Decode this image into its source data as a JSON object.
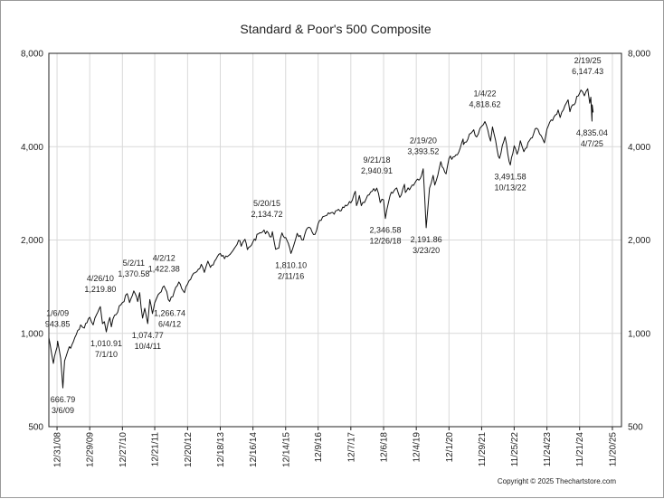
{
  "chart_data": {
    "type": "line",
    "title": "Standard & Poor's 500 Composite",
    "xlabel": "",
    "ylabel": "",
    "y_scale": "log",
    "ylim": [
      500,
      8000
    ],
    "grid": true,
    "y_ticks": [
      500,
      1000,
      2000,
      4000,
      8000
    ],
    "y_tick_labels": [
      "500",
      "1,000",
      "2,000",
      "4,000",
      "8,000"
    ],
    "x_ticks": [
      "12/31/08",
      "12/29/09",
      "12/27/10",
      "12/21/11",
      "12/20/12",
      "12/18/13",
      "12/16/14",
      "12/14/15",
      "12/9/16",
      "12/7/17",
      "12/6/18",
      "12/4/19",
      "12/1/20",
      "11/29/21",
      "11/25/22",
      "11/24/23",
      "11/21/24",
      "11/20/25"
    ],
    "x_range": [
      "2008-10-01",
      "2026-03-01"
    ],
    "series": [
      {
        "values": [
          [
            "2008-10-01",
            970
          ],
          [
            "2008-11-20",
            800
          ],
          [
            "2008-12-31",
            903
          ],
          [
            "2009-01-06",
            943.85
          ],
          [
            "2009-02-10",
            830
          ],
          [
            "2009-03-06",
            666.79
          ],
          [
            "2009-03-25",
            815
          ],
          [
            "2009-05-01",
            880
          ],
          [
            "2009-06-15",
            920
          ],
          [
            "2009-08-01",
            990
          ],
          [
            "2009-09-20",
            1065
          ],
          [
            "2009-10-30",
            1040
          ],
          [
            "2009-12-29",
            1127
          ],
          [
            "2010-02-05",
            1065
          ],
          [
            "2010-03-15",
            1150
          ],
          [
            "2010-04-26",
            1219.8
          ],
          [
            "2010-05-20",
            1075
          ],
          [
            "2010-06-10",
            1090
          ],
          [
            "2010-07-01",
            1010.91
          ],
          [
            "2010-08-09",
            1125
          ],
          [
            "2010-08-26",
            1050
          ],
          [
            "2010-10-01",
            1145
          ],
          [
            "2010-12-27",
            1257
          ],
          [
            "2011-02-18",
            1343
          ],
          [
            "2011-03-16",
            1257
          ],
          [
            "2011-05-02",
            1370.58
          ],
          [
            "2011-06-15",
            1266
          ],
          [
            "2011-07-07",
            1353
          ],
          [
            "2011-08-08",
            1120
          ],
          [
            "2011-09-01",
            1205
          ],
          [
            "2011-10-04",
            1074.77
          ],
          [
            "2011-10-27",
            1285
          ],
          [
            "2011-11-25",
            1158
          ],
          [
            "2011-12-21",
            1254
          ],
          [
            "2012-02-15",
            1350
          ],
          [
            "2012-04-02",
            1422.38
          ],
          [
            "2012-06-04",
            1266.74
          ],
          [
            "2012-09-14",
            1465
          ],
          [
            "2012-11-15",
            1353
          ],
          [
            "2012-12-20",
            1443
          ],
          [
            "2013-05-21",
            1669
          ],
          [
            "2013-06-24",
            1573
          ],
          [
            "2013-08-02",
            1709
          ],
          [
            "2013-08-30",
            1632
          ],
          [
            "2013-12-18",
            1810
          ],
          [
            "2014-02-03",
            1741
          ],
          [
            "2014-07-24",
            1988
          ],
          [
            "2014-08-07",
            1910
          ],
          [
            "2014-09-18",
            2011
          ],
          [
            "2014-10-15",
            1862
          ],
          [
            "2014-12-16",
            1972
          ],
          [
            "2015-03-01",
            2110
          ],
          [
            "2015-05-20",
            2134.72
          ],
          [
            "2015-07-08",
            2046
          ],
          [
            "2015-07-20",
            2128
          ],
          [
            "2015-08-25",
            1867
          ],
          [
            "2015-09-29",
            1884
          ],
          [
            "2015-11-03",
            2109
          ],
          [
            "2015-12-14",
            2038
          ],
          [
            "2016-02-11",
            1810.1
          ],
          [
            "2016-04-20",
            2102
          ],
          [
            "2016-06-27",
            2000
          ],
          [
            "2016-08-15",
            2190
          ],
          [
            "2016-11-04",
            2085
          ],
          [
            "2016-12-09",
            2259
          ],
          [
            "2017-03-01",
            2395
          ],
          [
            "2017-08-08",
            2480
          ],
          [
            "2017-12-07",
            2636
          ],
          [
            "2018-01-26",
            2872
          ],
          [
            "2018-02-08",
            2581
          ],
          [
            "2018-03-12",
            2783
          ],
          [
            "2018-04-02",
            2581
          ],
          [
            "2018-06-12",
            2786
          ],
          [
            "2018-09-21",
            2940.91
          ],
          [
            "2018-10-29",
            2641
          ],
          [
            "2018-12-06",
            2695
          ],
          [
            "2018-12-26",
            2346.58
          ],
          [
            "2019-02-15",
            2775
          ],
          [
            "2019-04-30",
            2945
          ],
          [
            "2019-06-03",
            2744
          ],
          [
            "2019-07-26",
            3025
          ],
          [
            "2019-08-05",
            2845
          ],
          [
            "2019-12-04",
            3113
          ],
          [
            "2020-01-31",
            3225
          ],
          [
            "2020-02-19",
            3393.52
          ],
          [
            "2020-03-23",
            2191.86
          ],
          [
            "2020-04-29",
            2940
          ],
          [
            "2020-06-08",
            3232
          ],
          [
            "2020-06-26",
            3009
          ],
          [
            "2020-09-02",
            3580
          ],
          [
            "2020-10-30",
            3270
          ],
          [
            "2020-12-01",
            3662
          ],
          [
            "2021-03-04",
            3768
          ],
          [
            "2021-05-07",
            4233
          ],
          [
            "2021-05-12",
            4063
          ],
          [
            "2021-09-02",
            4537
          ],
          [
            "2021-10-04",
            4300
          ],
          [
            "2021-11-29",
            4655
          ],
          [
            "2022-01-04",
            4818.62
          ],
          [
            "2022-03-08",
            4170
          ],
          [
            "2022-03-29",
            4631
          ],
          [
            "2022-05-20",
            3900
          ],
          [
            "2022-06-16",
            3666
          ],
          [
            "2022-08-16",
            4305
          ],
          [
            "2022-09-30",
            3585
          ],
          [
            "2022-10-13",
            3491.58
          ],
          [
            "2022-11-25",
            4026
          ],
          [
            "2022-12-28",
            3783
          ],
          [
            "2023-02-02",
            4179
          ],
          [
            "2023-03-13",
            3855
          ],
          [
            "2023-07-31",
            4589
          ],
          [
            "2023-10-27",
            4117
          ],
          [
            "2023-11-24",
            4559
          ],
          [
            "2024-03-28",
            5254
          ],
          [
            "2024-04-19",
            4967
          ],
          [
            "2024-07-16",
            5667
          ],
          [
            "2024-08-05",
            5186
          ],
          [
            "2024-11-21",
            5949
          ],
          [
            "2024-12-06",
            6090
          ],
          [
            "2025-01-13",
            5836
          ],
          [
            "2025-02-19",
            6147.43
          ],
          [
            "2025-03-13",
            5521
          ],
          [
            "2025-03-25",
            5777
          ],
          [
            "2025-04-07",
            4835.04
          ],
          [
            "2025-04-09",
            5456
          ],
          [
            "2025-04-21",
            5158
          ]
        ]
      }
    ],
    "annotations": [
      {
        "date": "1/6/09",
        "value": "943.85",
        "position": "above"
      },
      {
        "date": "3/6/09",
        "value": "666.79",
        "position": "below"
      },
      {
        "date": "4/26/10",
        "value": "1,219.80",
        "position": "above"
      },
      {
        "date": "7/1/10",
        "value": "1,010.91",
        "position": "below"
      },
      {
        "date": "5/2/11",
        "value": "1,370.58",
        "position": "above"
      },
      {
        "date": "10/4/11",
        "value": "1,074.77",
        "position": "below"
      },
      {
        "date": "4/2/12",
        "value": "1,422.38",
        "position": "above"
      },
      {
        "date": "6/4/12",
        "value": "1,266.74",
        "position": "below"
      },
      {
        "date": "5/20/15",
        "value": "2,134.72",
        "position": "above"
      },
      {
        "date": "2/11/16",
        "value": "1,810.10",
        "position": "below"
      },
      {
        "date": "9/21/18",
        "value": "2,940.91",
        "position": "above"
      },
      {
        "date": "12/26/18",
        "value": "2,346.58",
        "position": "below"
      },
      {
        "date": "2/19/20",
        "value": "3,393.52",
        "position": "above"
      },
      {
        "date": "3/23/20",
        "value": "2,191.86",
        "position": "below"
      },
      {
        "date": "1/4/22",
        "value": "4,818.62",
        "position": "above"
      },
      {
        "date": "10/13/22",
        "value": "3,491.58",
        "position": "below"
      },
      {
        "date": "2/19/25",
        "value": "6,147.43",
        "position": "above"
      },
      {
        "date": "4/7/25",
        "value": "4,835.04",
        "position": "below"
      }
    ],
    "line_color": "#111111",
    "grid_color": "#d9d9d9"
  },
  "footer": {
    "copyright": "Copyright © 2025 Thechartstore.com"
  }
}
